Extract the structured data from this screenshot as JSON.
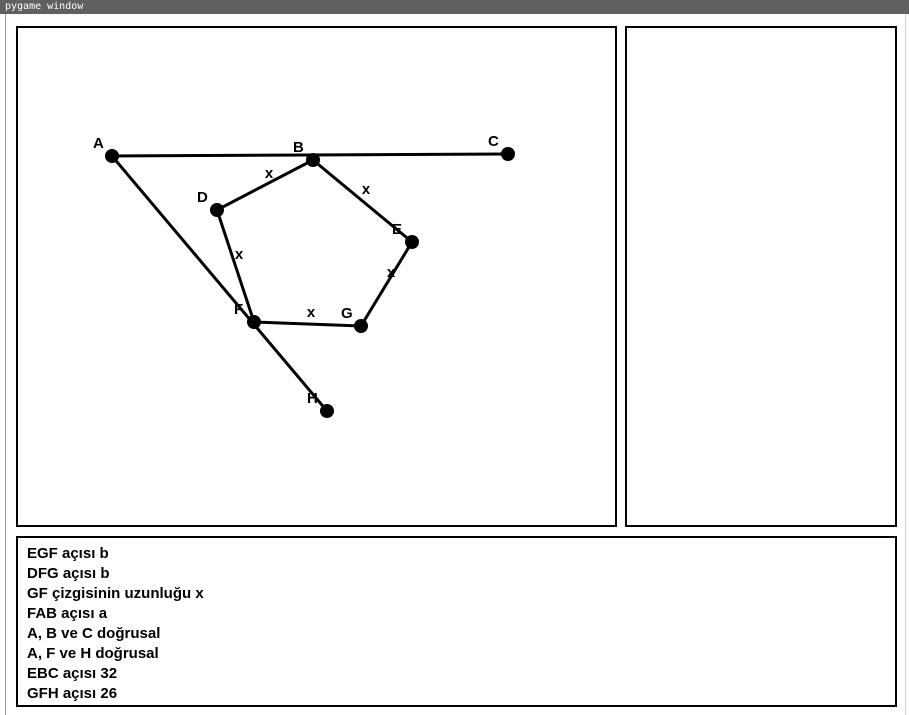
{
  "window": {
    "title": "pygame window"
  },
  "diagram": {
    "points": [
      {
        "id": "A",
        "label": "A"
      },
      {
        "id": "B",
        "label": "B"
      },
      {
        "id": "C",
        "label": "C"
      },
      {
        "id": "D",
        "label": "D"
      },
      {
        "id": "E",
        "label": "E"
      },
      {
        "id": "F",
        "label": "F"
      },
      {
        "id": "G",
        "label": "G"
      },
      {
        "id": "H",
        "label": "H"
      }
    ],
    "segments": [
      {
        "from": "A",
        "to": "C"
      },
      {
        "from": "A",
        "to": "H"
      },
      {
        "from": "B",
        "to": "D"
      },
      {
        "from": "B",
        "to": "E"
      },
      {
        "from": "D",
        "to": "F"
      },
      {
        "from": "E",
        "to": "G"
      },
      {
        "from": "F",
        "to": "G"
      }
    ],
    "segment_labels": [
      {
        "segment": "BD",
        "text": "x"
      },
      {
        "segment": "BE",
        "text": "x"
      },
      {
        "segment": "EG",
        "text": "x"
      },
      {
        "segment": "FG",
        "text": "x"
      },
      {
        "segment": "DF",
        "text": "x"
      }
    ]
  },
  "facts": [
    "EGF açısı b",
    "DFG açısı b",
    "GF çizgisinin uzunluğu x",
    "FAB açısı a",
    "A, B ve C doğrusal",
    "A, F ve H doğrusal",
    "EBC açısı 32",
    "GFH açısı 26"
  ]
}
